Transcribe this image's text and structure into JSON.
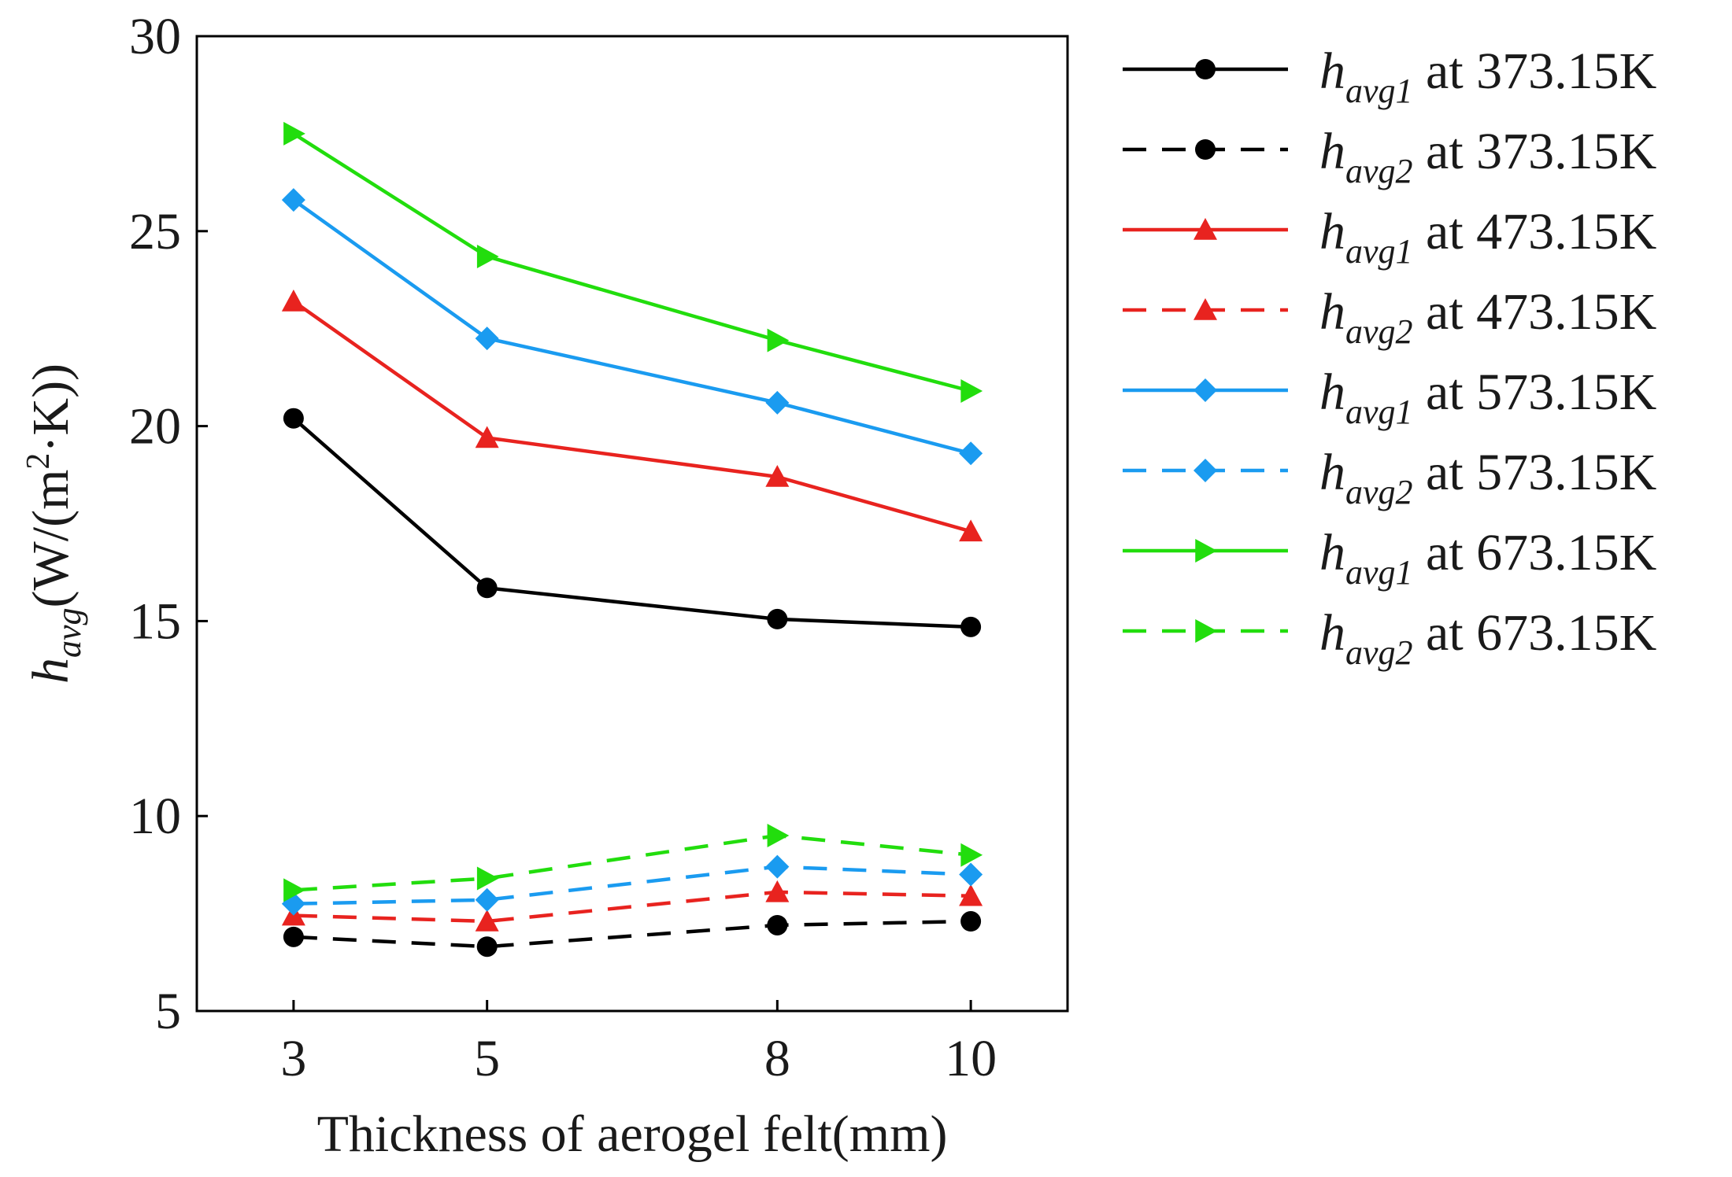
{
  "chart_data": {
    "type": "line",
    "title": "",
    "xlabel": "Thickness of aerogel felt(mm)",
    "ylabel": {
      "symbol": "h",
      "subscript": "avg",
      "unit_open": "(W/(m",
      "unit_sup": "2",
      "unit_close": "·K))"
    },
    "x": [
      3,
      5,
      8,
      10
    ],
    "x_ticks": [
      3,
      5,
      8,
      10
    ],
    "x_tick_labels": [
      "3",
      "5",
      "8",
      "10"
    ],
    "xlim": [
      2,
      11
    ],
    "ylim": [
      5,
      30
    ],
    "y_ticks": [
      5,
      10,
      15,
      20,
      25,
      30
    ],
    "y_tick_labels": [
      "5",
      "10",
      "15",
      "20",
      "25",
      "30"
    ],
    "grid": false,
    "legend_position": "outside-right",
    "series": [
      {
        "name": "h_avg1 at 373.15K",
        "symbol": "h",
        "sub": "avg1",
        "suffix": " at 373.15K",
        "color": "#000000",
        "dash": "solid",
        "marker": "circle",
        "values": [
          20.2,
          15.85,
          15.05,
          14.85
        ]
      },
      {
        "name": "h_avg2 at 373.15K",
        "symbol": "h",
        "sub": "avg2",
        "suffix": " at 373.15K",
        "color": "#000000",
        "dash": "dashed",
        "marker": "circle",
        "values": [
          6.9,
          6.65,
          7.2,
          7.3
        ]
      },
      {
        "name": "h_avg1 at 473.15K",
        "symbol": "h",
        "sub": "avg1",
        "suffix": " at 473.15K",
        "color": "#e8231f",
        "dash": "solid",
        "marker": "triangle",
        "values": [
          23.2,
          19.7,
          18.7,
          17.3
        ]
      },
      {
        "name": "h_avg2 at 473.15K",
        "symbol": "h",
        "sub": "avg2",
        "suffix": " at 473.15K",
        "color": "#e8231f",
        "dash": "dashed",
        "marker": "triangle",
        "values": [
          7.45,
          7.3,
          8.05,
          7.95
        ]
      },
      {
        "name": "h_avg1 at 573.15K",
        "symbol": "h",
        "sub": "avg1",
        "suffix": " at 573.15K",
        "color": "#1a9bf0",
        "dash": "solid",
        "marker": "diamond",
        "values": [
          25.8,
          22.25,
          20.6,
          19.3
        ]
      },
      {
        "name": "h_avg2 at 573.15K",
        "symbol": "h",
        "sub": "avg2",
        "suffix": " at 573.15K",
        "color": "#1a9bf0",
        "dash": "dashed",
        "marker": "diamond",
        "values": [
          7.75,
          7.85,
          8.7,
          8.5
        ]
      },
      {
        "name": "h_avg1 at 673.15K",
        "symbol": "h",
        "sub": "avg1",
        "suffix": " at 673.15K",
        "color": "#22dd0d",
        "dash": "solid",
        "marker": "triangle-right",
        "values": [
          27.5,
          24.35,
          22.2,
          20.9
        ]
      },
      {
        "name": "h_avg2 at 673.15K",
        "symbol": "h",
        "sub": "avg2",
        "suffix": " at 673.15K",
        "color": "#22dd0d",
        "dash": "dashed",
        "marker": "triangle-right",
        "values": [
          8.1,
          8.4,
          9.5,
          9.0
        ]
      }
    ]
  }
}
